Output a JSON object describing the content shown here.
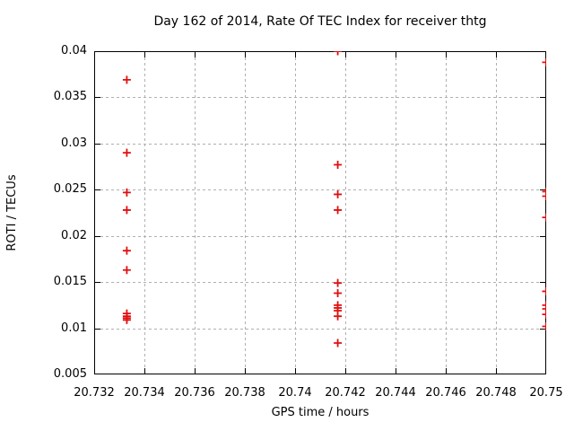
{
  "chart_data": {
    "type": "scatter",
    "title": "Day 162 of 2014, Rate Of TEC Index for receiver thtg",
    "xlabel": "GPS time / hours",
    "ylabel": "ROTI / TECUs",
    "xlim": [
      20.732,
      20.75
    ],
    "ylim": [
      0.005,
      0.04
    ],
    "xticks": [
      20.732,
      20.734,
      20.736,
      20.738,
      20.74,
      20.742,
      20.744,
      20.746,
      20.748,
      20.75
    ],
    "xtick_labels": [
      "20.732",
      "20.734",
      "20.736",
      "20.738",
      "20.74",
      "20.742",
      "20.744",
      "20.746",
      "20.748",
      "20.75"
    ],
    "yticks": [
      0.005,
      0.01,
      0.015,
      0.02,
      0.025,
      0.03,
      0.035,
      0.04
    ],
    "ytick_labels": [
      "0.005",
      "0.01",
      "0.015",
      "0.02",
      "0.025",
      "0.03",
      "0.035",
      "0.04"
    ],
    "grid": true,
    "grid_style": "dashed",
    "legend": "none",
    "marker": "plus",
    "marker_size": 9,
    "colors": {
      "marker": "#e01010",
      "grid": "#b0b0b0",
      "axis": "#000000",
      "background": "#ffffff",
      "text": "#000000"
    },
    "series": [
      {
        "name": "roti",
        "points": [
          [
            20.7333,
            0.0369
          ],
          [
            20.7333,
            0.029
          ],
          [
            20.7333,
            0.0247
          ],
          [
            20.7333,
            0.0228
          ],
          [
            20.7333,
            0.0184
          ],
          [
            20.7333,
            0.0163
          ],
          [
            20.7333,
            0.0116
          ],
          [
            20.7333,
            0.0113
          ],
          [
            20.7333,
            0.0111
          ],
          [
            20.7333,
            0.0109
          ],
          [
            20.7417,
            0.04
          ],
          [
            20.7417,
            0.0277
          ],
          [
            20.7417,
            0.0245
          ],
          [
            20.7417,
            0.0228
          ],
          [
            20.7417,
            0.0149
          ],
          [
            20.7417,
            0.0138
          ],
          [
            20.7417,
            0.0125
          ],
          [
            20.7417,
            0.0122
          ],
          [
            20.7417,
            0.0119
          ],
          [
            20.7417,
            0.0113
          ],
          [
            20.7417,
            0.0084
          ],
          [
            20.75,
            0.0388
          ],
          [
            20.75,
            0.0248
          ],
          [
            20.75,
            0.0243
          ],
          [
            20.75,
            0.022
          ],
          [
            20.75,
            0.014
          ],
          [
            20.75,
            0.0125
          ],
          [
            20.75,
            0.0121
          ],
          [
            20.75,
            0.0115
          ],
          [
            20.75,
            0.0102
          ]
        ]
      }
    ]
  }
}
